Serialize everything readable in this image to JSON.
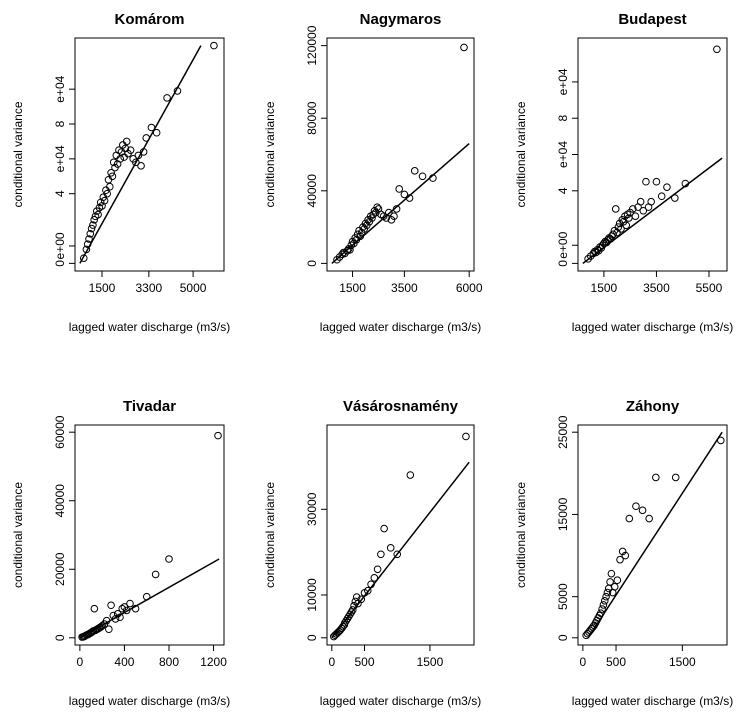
{
  "chart_data": [
    {
      "type": "scatter",
      "title": "Komárom",
      "xlabel": "lagged water discharge (m3/s)",
      "ylabel": "conditional variance",
      "xlim": [
        650,
        6000
      ],
      "ylim": [
        0,
        125000
      ],
      "x_ticks": [
        {
          "v": 1500,
          "t": "1500"
        },
        {
          "v": 3300,
          "t": "3300"
        },
        {
          "v": 5000,
          "t": "5000"
        }
      ],
      "y_ticks": [
        {
          "v": 0,
          "t": "0"
        },
        {
          "v": 10000,
          "t": "e+00"
        },
        {
          "v": 40000,
          "t": "4"
        },
        {
          "v": 60000,
          "t": "e+04"
        },
        {
          "v": 80000,
          "t": "8"
        },
        {
          "v": 100000,
          "t": "e+04"
        }
      ],
      "line": {
        "x": [
          650,
          5300
        ],
        "y": [
          0,
          125000
        ]
      },
      "points": [
        [
          800,
          3000
        ],
        [
          900,
          8000
        ],
        [
          950,
          11000
        ],
        [
          1000,
          14000
        ],
        [
          1050,
          17000
        ],
        [
          1100,
          20000
        ],
        [
          1150,
          22000
        ],
        [
          1200,
          25000
        ],
        [
          1250,
          27000
        ],
        [
          1300,
          30000
        ],
        [
          1350,
          28000
        ],
        [
          1400,
          32000
        ],
        [
          1450,
          35000
        ],
        [
          1500,
          33000
        ],
        [
          1550,
          38000
        ],
        [
          1600,
          36000
        ],
        [
          1650,
          42000
        ],
        [
          1700,
          40000
        ],
        [
          1750,
          48000
        ],
        [
          1800,
          44000
        ],
        [
          1850,
          52000
        ],
        [
          1900,
          50000
        ],
        [
          1950,
          58000
        ],
        [
          2000,
          55000
        ],
        [
          2050,
          62000
        ],
        [
          2100,
          57000
        ],
        [
          2150,
          65000
        ],
        [
          2200,
          60000
        ],
        [
          2250,
          64000
        ],
        [
          2300,
          68000
        ],
        [
          2350,
          61000
        ],
        [
          2400,
          66000
        ],
        [
          2450,
          70000
        ],
        [
          2500,
          63000
        ],
        [
          2600,
          65000
        ],
        [
          2700,
          60000
        ],
        [
          2800,
          58000
        ],
        [
          2900,
          62000
        ],
        [
          3000,
          56000
        ],
        [
          3100,
          64000
        ],
        [
          3200,
          72000
        ],
        [
          3400,
          78000
        ],
        [
          3600,
          75000
        ],
        [
          4000,
          95000
        ],
        [
          4400,
          99000
        ],
        [
          5800,
          125000
        ]
      ]
    },
    {
      "type": "scatter",
      "title": "Nagymaros",
      "xlabel": "lagged water discharge (m3/s)",
      "ylabel": "conditional variance",
      "xlim": [
        700,
        6000
      ],
      "ylim": [
        0,
        120000
      ],
      "x_ticks": [
        {
          "v": 1500,
          "t": "1500"
        },
        {
          "v": 3500,
          "t": "3500"
        },
        {
          "v": 6000,
          "t": "6000"
        }
      ],
      "y_ticks": [
        {
          "v": 0,
          "t": "0"
        },
        {
          "v": 40000,
          "t": "40000"
        },
        {
          "v": 80000,
          "t": "80000"
        },
        {
          "v": 120000,
          "t": "120000"
        }
      ],
      "line": {
        "x": [
          700,
          6000
        ],
        "y": [
          0,
          66000
        ]
      },
      "points": [
        [
          900,
          2000
        ],
        [
          1000,
          3500
        ],
        [
          1100,
          5000
        ],
        [
          1150,
          6000
        ],
        [
          1200,
          5500
        ],
        [
          1300,
          7000
        ],
        [
          1350,
          8000
        ],
        [
          1400,
          7500
        ],
        [
          1450,
          10000
        ],
        [
          1500,
          12000
        ],
        [
          1550,
          11000
        ],
        [
          1600,
          14000
        ],
        [
          1650,
          13000
        ],
        [
          1700,
          16000
        ],
        [
          1750,
          18000
        ],
        [
          1800,
          15000
        ],
        [
          1850,
          17000
        ],
        [
          1900,
          20000
        ],
        [
          1950,
          19000
        ],
        [
          2000,
          22000
        ],
        [
          2050,
          21000
        ],
        [
          2100,
          24000
        ],
        [
          2150,
          23000
        ],
        [
          2200,
          26000
        ],
        [
          2250,
          25000
        ],
        [
          2300,
          27000
        ],
        [
          2350,
          29000
        ],
        [
          2400,
          28000
        ],
        [
          2450,
          31000
        ],
        [
          2500,
          30000
        ],
        [
          2600,
          27000
        ],
        [
          2700,
          26000
        ],
        [
          2800,
          25000
        ],
        [
          2900,
          28000
        ],
        [
          3000,
          24000
        ],
        [
          3100,
          26000
        ],
        [
          3200,
          30000
        ],
        [
          3300,
          41000
        ],
        [
          3500,
          38000
        ],
        [
          3700,
          36000
        ],
        [
          3900,
          51000
        ],
        [
          4200,
          48000
        ],
        [
          4600,
          47000
        ],
        [
          5800,
          119000
        ]
      ]
    },
    {
      "type": "scatter",
      "title": "Budapest",
      "xlabel": "lagged water discharge (m3/s)",
      "ylabel": "conditional variance",
      "xlim": [
        700,
        6000
      ],
      "ylim": [
        0,
        120000
      ],
      "x_ticks": [
        {
          "v": 1500,
          "t": "1500"
        },
        {
          "v": 3500,
          "t": "3500"
        },
        {
          "v": 5500,
          "t": "5500"
        }
      ],
      "y_ticks": [
        {
          "v": 0,
          "t": "0"
        },
        {
          "v": 10000,
          "t": "e+00"
        },
        {
          "v": 40000,
          "t": "4"
        },
        {
          "v": 60000,
          "t": "e+04"
        },
        {
          "v": 80000,
          "t": "8"
        },
        {
          "v": 100000,
          "t": "e+04"
        }
      ],
      "line": {
        "x": [
          700,
          6000
        ],
        "y": [
          0,
          58000
        ]
      },
      "points": [
        [
          900,
          2500
        ],
        [
          1000,
          4000
        ],
        [
          1100,
          5500
        ],
        [
          1150,
          6500
        ],
        [
          1200,
          6000
        ],
        [
          1250,
          7500
        ],
        [
          1300,
          7000
        ],
        [
          1350,
          9000
        ],
        [
          1400,
          8500
        ],
        [
          1450,
          10000
        ],
        [
          1500,
          11000
        ],
        [
          1550,
          12000
        ],
        [
          1600,
          11500
        ],
        [
          1650,
          13000
        ],
        [
          1700,
          14000
        ],
        [
          1750,
          13500
        ],
        [
          1800,
          15000
        ],
        [
          1850,
          16000
        ],
        [
          1900,
          18000
        ],
        [
          1950,
          30000
        ],
        [
          2000,
          17000
        ],
        [
          2050,
          20000
        ],
        [
          2100,
          22000
        ],
        [
          2150,
          19000
        ],
        [
          2200,
          24000
        ],
        [
          2250,
          23000
        ],
        [
          2300,
          26000
        ],
        [
          2350,
          21000
        ],
        [
          2400,
          27000
        ],
        [
          2450,
          25000
        ],
        [
          2500,
          28000
        ],
        [
          2600,
          30000
        ],
        [
          2700,
          26000
        ],
        [
          2800,
          31000
        ],
        [
          2900,
          34000
        ],
        [
          3000,
          29000
        ],
        [
          3100,
          45000
        ],
        [
          3200,
          31000
        ],
        [
          3300,
          34000
        ],
        [
          3500,
          45000
        ],
        [
          3700,
          37000
        ],
        [
          3900,
          42000
        ],
        [
          4200,
          36000
        ],
        [
          4600,
          44000
        ],
        [
          5800,
          118000
        ]
      ]
    },
    {
      "type": "scatter",
      "title": "Tivadar",
      "xlabel": "lagged water discharge (m3/s)",
      "ylabel": "conditional variance",
      "xlim": [
        0,
        1250
      ],
      "ylim": [
        0,
        60000
      ],
      "x_ticks": [
        {
          "v": 0,
          "t": "0"
        },
        {
          "v": 400,
          "t": "400"
        },
        {
          "v": 800,
          "t": "800"
        },
        {
          "v": 1200,
          "t": "1200"
        }
      ],
      "y_ticks": [
        {
          "v": 0,
          "t": "0"
        },
        {
          "v": 20000,
          "t": "20000"
        },
        {
          "v": 40000,
          "t": "40000"
        },
        {
          "v": 60000,
          "t": "60000"
        }
      ],
      "line": {
        "x": [
          0,
          1250
        ],
        "y": [
          0,
          23000
        ]
      },
      "points": [
        [
          20,
          200
        ],
        [
          30,
          300
        ],
        [
          40,
          400
        ],
        [
          50,
          600
        ],
        [
          60,
          800
        ],
        [
          70,
          900
        ],
        [
          80,
          1100
        ],
        [
          90,
          1300
        ],
        [
          100,
          1500
        ],
        [
          110,
          1700
        ],
        [
          120,
          2000
        ],
        [
          130,
          8500
        ],
        [
          140,
          2200
        ],
        [
          150,
          2400
        ],
        [
          160,
          2600
        ],
        [
          170,
          2800
        ],
        [
          180,
          3000
        ],
        [
          190,
          3200
        ],
        [
          200,
          3500
        ],
        [
          220,
          4000
        ],
        [
          240,
          5000
        ],
        [
          260,
          2500
        ],
        [
          280,
          9500
        ],
        [
          300,
          6500
        ],
        [
          320,
          5500
        ],
        [
          340,
          7000
        ],
        [
          360,
          6000
        ],
        [
          380,
          8500
        ],
        [
          400,
          9000
        ],
        [
          420,
          8000
        ],
        [
          450,
          10000
        ],
        [
          500,
          8500
        ],
        [
          600,
          12000
        ],
        [
          680,
          18500
        ],
        [
          800,
          23000
        ],
        [
          1240,
          59000
        ]
      ]
    },
    {
      "type": "scatter",
      "title": "Vásárosnamény",
      "xlabel": "lagged water discharge (m3/s)",
      "ylabel": "conditional variance",
      "xlim": [
        0,
        2100
      ],
      "ylim": [
        0,
        48000
      ],
      "x_ticks": [
        {
          "v": 0,
          "t": "0"
        },
        {
          "v": 500,
          "t": "500"
        },
        {
          "v": 1500,
          "t": "1500"
        }
      ],
      "y_ticks": [
        {
          "v": 0,
          "t": "0"
        },
        {
          "v": 10000,
          "t": "10000"
        },
        {
          "v": 30000,
          "t": "30000"
        }
      ],
      "line": {
        "x": [
          0,
          2100
        ],
        "y": [
          0,
          41000
        ]
      },
      "points": [
        [
          30,
          300
        ],
        [
          50,
          600
        ],
        [
          70,
          900
        ],
        [
          90,
          1200
        ],
        [
          110,
          1500
        ],
        [
          130,
          1800
        ],
        [
          150,
          2200
        ],
        [
          170,
          2600
        ],
        [
          190,
          3000
        ],
        [
          200,
          3500
        ],
        [
          220,
          4000
        ],
        [
          240,
          4500
        ],
        [
          260,
          5000
        ],
        [
          280,
          5500
        ],
        [
          300,
          6000
        ],
        [
          320,
          6500
        ],
        [
          340,
          7500
        ],
        [
          360,
          8500
        ],
        [
          380,
          9500
        ],
        [
          400,
          8000
        ],
        [
          450,
          9000
        ],
        [
          500,
          10500
        ],
        [
          550,
          11000
        ],
        [
          600,
          12500
        ],
        [
          650,
          14000
        ],
        [
          700,
          16000
        ],
        [
          750,
          19500
        ],
        [
          800,
          25500
        ],
        [
          900,
          21000
        ],
        [
          1000,
          19500
        ],
        [
          1200,
          38000
        ],
        [
          2050,
          47000
        ]
      ]
    },
    {
      "type": "scatter",
      "title": "Záhony",
      "xlabel": "lagged water discharge (m3/s)",
      "ylabel": "conditional variance",
      "xlim": [
        0,
        2100
      ],
      "ylim": [
        0,
        25000
      ],
      "x_ticks": [
        {
          "v": 0,
          "t": "0"
        },
        {
          "v": 500,
          "t": "500"
        },
        {
          "v": 1500,
          "t": "1500"
        }
      ],
      "y_ticks": [
        {
          "v": 0,
          "t": "0"
        },
        {
          "v": 5000,
          "t": "5000"
        },
        {
          "v": 15000,
          "t": "15000"
        },
        {
          "v": 25000,
          "t": "25000"
        }
      ],
      "line": {
        "x": [
          80,
          2100
        ],
        "y": [
          0,
          25000
        ]
      },
      "points": [
        [
          50,
          300
        ],
        [
          70,
          500
        ],
        [
          90,
          700
        ],
        [
          110,
          900
        ],
        [
          130,
          1100
        ],
        [
          150,
          1300
        ],
        [
          170,
          1500
        ],
        [
          190,
          1800
        ],
        [
          210,
          2100
        ],
        [
          230,
          2400
        ],
        [
          250,
          2700
        ],
        [
          270,
          3000
        ],
        [
          290,
          3500
        ],
        [
          310,
          4000
        ],
        [
          330,
          4500
        ],
        [
          350,
          5000
        ],
        [
          370,
          5500
        ],
        [
          390,
          6000
        ],
        [
          410,
          6800
        ],
        [
          430,
          7800
        ],
        [
          450,
          5500
        ],
        [
          480,
          6200
        ],
        [
          520,
          7000
        ],
        [
          560,
          9500
        ],
        [
          600,
          10500
        ],
        [
          640,
          10000
        ],
        [
          700,
          14500
        ],
        [
          800,
          16000
        ],
        [
          900,
          15500
        ],
        [
          1000,
          14500
        ],
        [
          1100,
          19500
        ],
        [
          1400,
          19500
        ],
        [
          2080,
          24000
        ]
      ]
    }
  ]
}
